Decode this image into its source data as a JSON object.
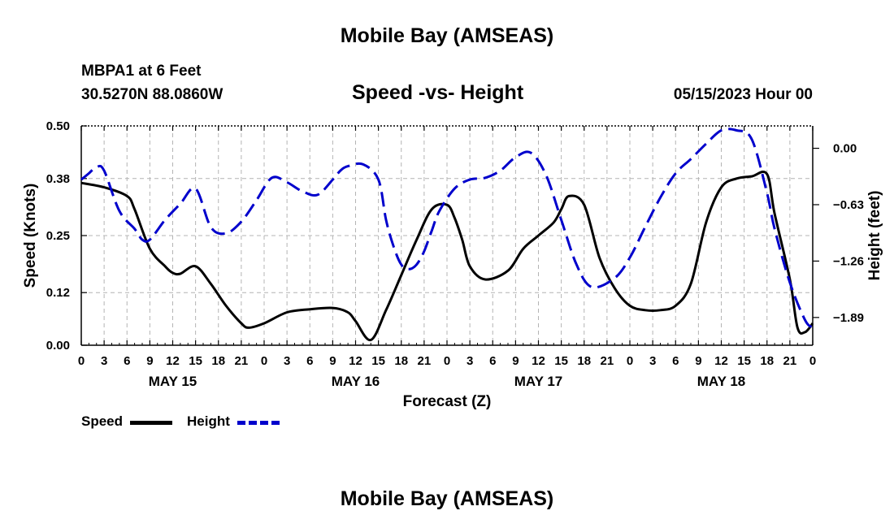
{
  "header": {
    "title": "Mobile Bay (AMSEAS)",
    "station": "MBPA1 at 6 Feet",
    "coords": "30.5270N  88.0860W",
    "subtitle": "Speed -vs- Height",
    "run_time": "05/15/2023 Hour 00"
  },
  "footer": {
    "title": "Mobile Bay (AMSEAS)"
  },
  "legend": {
    "speed_label": "Speed",
    "height_label": "Height"
  },
  "colors": {
    "speed": "#000000",
    "height": "#0000cc",
    "grid": "#b4b4b4"
  },
  "chart_data": {
    "type": "line",
    "title": "Speed -vs- Height",
    "xlabel": "Forecast (Z)",
    "ylabel": "Speed (Knots)",
    "y2label": "Height (feet)",
    "xlim": [
      0,
      96
    ],
    "ylim": [
      0,
      0.5
    ],
    "y2lim": [
      -2.2,
      0.25
    ],
    "y_ticks": [
      0.0,
      0.12,
      0.25,
      0.38,
      0.5
    ],
    "y_tick_labels": [
      "0.00",
      "0.12",
      "0.25",
      "0.38",
      "0.50"
    ],
    "y2_ticks": [
      0.0,
      -0.63,
      -1.26,
      -1.89
    ],
    "y2_tick_labels": [
      "0.00",
      "−0.63",
      "−1.26",
      "−1.89"
    ],
    "x_ticks": [
      0,
      3,
      6,
      9,
      12,
      15,
      18,
      21,
      24,
      27,
      30,
      33,
      36,
      39,
      42,
      45,
      48,
      51,
      54,
      57,
      60,
      63,
      66,
      69,
      72,
      75,
      78,
      81,
      84,
      87,
      90,
      93,
      96
    ],
    "x_tick_labels": [
      "0",
      "3",
      "6",
      "9",
      "12",
      "15",
      "18",
      "21",
      "0",
      "3",
      "6",
      "9",
      "12",
      "15",
      "18",
      "21",
      "0",
      "3",
      "6",
      "9",
      "12",
      "15",
      "18",
      "21",
      "0",
      "3",
      "6",
      "9",
      "12",
      "15",
      "18",
      "21",
      "0"
    ],
    "day_labels": [
      {
        "label": "MAY 15",
        "x": 12
      },
      {
        "label": "MAY 16",
        "x": 36
      },
      {
        "label": "MAY 17",
        "x": 60
      },
      {
        "label": "MAY 18",
        "x": 84
      }
    ],
    "legend_position": "bottom-left",
    "grid": true,
    "series": [
      {
        "name": "Speed",
        "axis": "left",
        "x": [
          0,
          3,
          6,
          7,
          9,
          11,
          12,
          13,
          15,
          17,
          19,
          21,
          22,
          24,
          27,
          30,
          33,
          35,
          36,
          38,
          40,
          42,
          44,
          46,
          48,
          49,
          50,
          51,
          53,
          56,
          58,
          60,
          62,
          63,
          64,
          66,
          68,
          70,
          72,
          74,
          76,
          78,
          80,
          82,
          84,
          86,
          88,
          90,
          91,
          93,
          94,
          95,
          96
        ],
        "values": [
          0.37,
          0.36,
          0.34,
          0.31,
          0.22,
          0.18,
          0.165,
          0.163,
          0.18,
          0.14,
          0.09,
          0.05,
          0.04,
          0.05,
          0.075,
          0.082,
          0.085,
          0.075,
          0.055,
          0.012,
          0.08,
          0.16,
          0.24,
          0.31,
          0.32,
          0.29,
          0.24,
          0.18,
          0.15,
          0.17,
          0.22,
          0.25,
          0.28,
          0.31,
          0.34,
          0.32,
          0.2,
          0.13,
          0.09,
          0.08,
          0.08,
          0.09,
          0.14,
          0.28,
          0.36,
          0.38,
          0.385,
          0.39,
          0.3,
          0.15,
          0.04,
          0.03,
          0.05
        ]
      },
      {
        "name": "Height",
        "axis": "right",
        "x": [
          0,
          1,
          2,
          3,
          5,
          7,
          8,
          9,
          11,
          13,
          15,
          17,
          19,
          21,
          23,
          25,
          27,
          29,
          31,
          33,
          34,
          35,
          37,
          39,
          40,
          41,
          42,
          43,
          44,
          45,
          46,
          47,
          49,
          51,
          53,
          55,
          57,
          59,
          61,
          63,
          65,
          67,
          70,
          72,
          74,
          76,
          78,
          80,
          82,
          84,
          86,
          88,
          90,
          91,
          93,
          95,
          96
        ],
        "values": [
          -0.35,
          -0.28,
          -0.21,
          -0.25,
          -0.7,
          -0.9,
          -1.02,
          -1.02,
          -0.8,
          -0.62,
          -0.45,
          -0.88,
          -0.95,
          -0.82,
          -0.58,
          -0.33,
          -0.38,
          -0.48,
          -0.52,
          -0.35,
          -0.25,
          -0.2,
          -0.18,
          -0.35,
          -0.8,
          -1.1,
          -1.3,
          -1.35,
          -1.3,
          -1.15,
          -0.92,
          -0.7,
          -0.45,
          -0.35,
          -0.33,
          -0.25,
          -0.1,
          -0.05,
          -0.3,
          -0.8,
          -1.3,
          -1.55,
          -1.45,
          -1.22,
          -0.88,
          -0.55,
          -0.28,
          -0.12,
          0.05,
          0.2,
          0.2,
          0.1,
          -0.5,
          -0.9,
          -1.5,
          -1.92,
          -2.0
        ]
      }
    ]
  }
}
